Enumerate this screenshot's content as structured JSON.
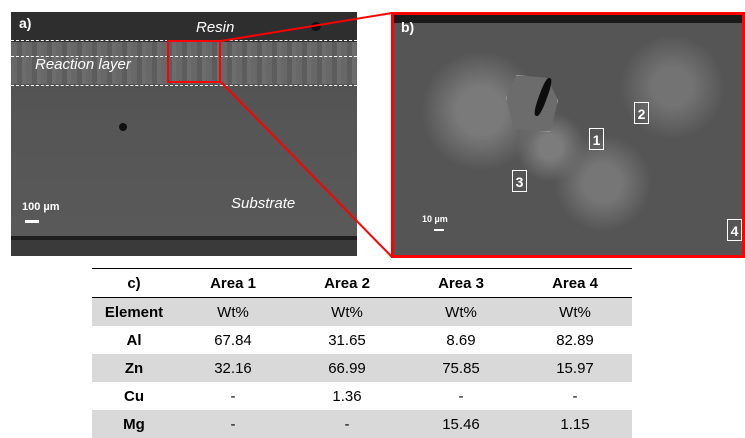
{
  "panel_a": {
    "label": "a)",
    "resin_label": "Resin",
    "reaction_label": "Reaction layer",
    "substrate_label": "Substrate",
    "scale_label": "100 µm"
  },
  "panel_b": {
    "label": "b)",
    "scale_label": "10 µm",
    "areas": [
      "1",
      "2",
      "3",
      "4"
    ]
  },
  "table": {
    "corner": "c)",
    "columns": [
      "Area 1",
      "Area 2",
      "Area 3",
      "Area 4"
    ],
    "rows": [
      {
        "label": "Element",
        "values": [
          "Wt%",
          "Wt%",
          "Wt%",
          "Wt%"
        ]
      },
      {
        "label": "Al",
        "values": [
          "67.84",
          "31.65",
          "8.69",
          "82.89"
        ]
      },
      {
        "label": "Zn",
        "values": [
          "32.16",
          "66.99",
          "75.85",
          "15.97"
        ]
      },
      {
        "label": "Cu",
        "values": [
          "-",
          "1.36",
          "-",
          "-"
        ]
      },
      {
        "label": "Mg",
        "values": [
          "-",
          "-",
          "15.46",
          "1.15"
        ]
      }
    ]
  },
  "colors": {
    "highlight": "#ff0000",
    "row_shade": "#d9d9d9"
  }
}
